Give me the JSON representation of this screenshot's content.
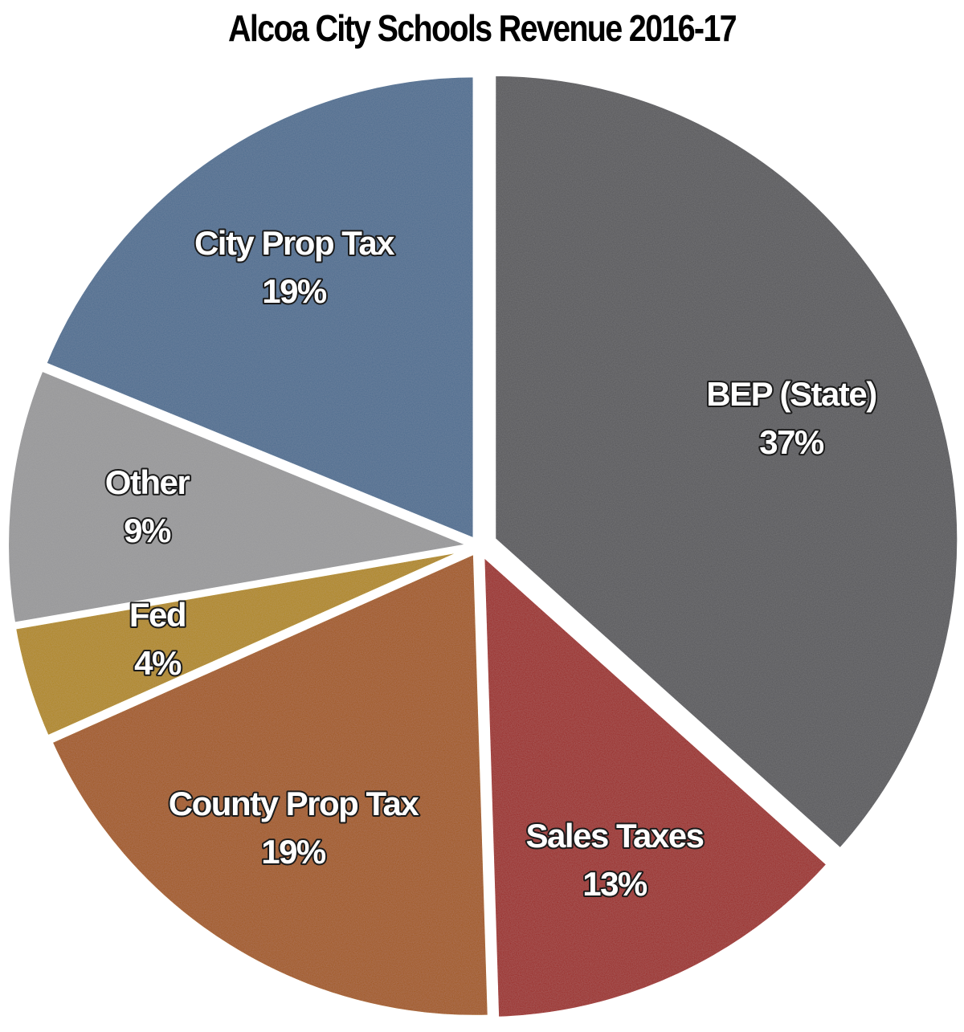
{
  "chart_data": {
    "type": "pie",
    "title": "Alcoa City Schools Revenue 2016-17",
    "slices": [
      {
        "label": "BEP (State)",
        "pct_label": "37%",
        "value": 37,
        "color": "#555558"
      },
      {
        "label": "Sales Taxes",
        "pct_label": "13%",
        "value": 13,
        "color": "#9a201d"
      },
      {
        "label": "County Prop Tax",
        "pct_label": "19%",
        "value": 19,
        "color": "#a05406"
      },
      {
        "label": "Fed",
        "pct_label": "4%",
        "value": 4,
        "color": "#ae8504"
      },
      {
        "label": "Other",
        "pct_label": "9%",
        "value": 9,
        "color": "#959597"
      },
      {
        "label": "City Prop Tax",
        "pct_label": "19%",
        "value": 19,
        "color": "#4a6a8e"
      }
    ]
  }
}
